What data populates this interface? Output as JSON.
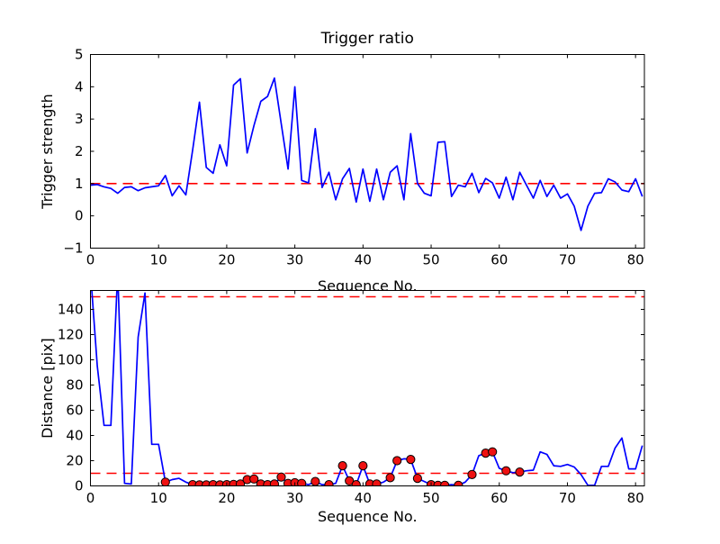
{
  "figure": {
    "title": "Trigger ratio",
    "background": "#ffffff",
    "line_color": "#0000ff",
    "threshold_color": "#ff0000",
    "marker_fill": "#ee1111",
    "marker_edge": "#000000",
    "axis_color": "#000000"
  },
  "chart_data": [
    {
      "type": "line",
      "title": "Trigger ratio",
      "xlabel": "Sequence No.",
      "ylabel": "Trigger strength",
      "xlim": [
        0,
        81.3
      ],
      "ylim": [
        -1,
        5
      ],
      "xticks": [
        0,
        10,
        20,
        30,
        40,
        50,
        60,
        70,
        80
      ],
      "yticks": [
        -1,
        0,
        1,
        2,
        3,
        4,
        5
      ],
      "grid": false,
      "legend": null,
      "threshold_lines": [
        1.0
      ],
      "x_start": 0,
      "y": [
        0.95,
        0.97,
        0.9,
        0.85,
        0.7,
        0.88,
        0.9,
        0.78,
        0.87,
        0.9,
        0.93,
        1.25,
        0.62,
        0.93,
        0.65,
        2.05,
        3.52,
        1.5,
        1.32,
        2.2,
        1.55,
        4.05,
        4.25,
        1.95,
        2.8,
        3.55,
        3.7,
        4.27,
        2.85,
        1.45,
        4.0,
        1.1,
        1.02,
        2.7,
        0.88,
        1.35,
        0.5,
        1.15,
        1.47,
        0.43,
        1.45,
        0.45,
        1.45,
        0.5,
        1.35,
        1.55,
        0.5,
        2.55,
        1.0,
        0.7,
        0.62,
        2.28,
        2.3,
        0.6,
        0.95,
        0.9,
        1.32,
        0.72,
        1.16,
        1.02,
        0.55,
        1.2,
        0.5,
        1.35,
        0.95,
        0.55,
        1.1,
        0.6,
        0.95,
        0.55,
        0.68,
        0.3,
        -0.45,
        0.3,
        0.7,
        0.72,
        1.15,
        1.05,
        0.8,
        0.75,
        1.15,
        0.6
      ]
    },
    {
      "type": "line",
      "title": "",
      "xlabel": "Sequence No.",
      "ylabel": "Distance [pix]",
      "xlim": [
        0,
        81.3
      ],
      "ylim": [
        0,
        155
      ],
      "xticks": [
        0,
        10,
        20,
        30,
        40,
        50,
        60,
        70,
        80
      ],
      "yticks": [
        0,
        20,
        40,
        60,
        80,
        100,
        120,
        140
      ],
      "grid": false,
      "legend": null,
      "threshold_lines": [
        150,
        10
      ],
      "x_start": 0,
      "y": [
        170,
        95,
        48,
        48,
        170,
        2,
        1.5,
        118,
        153,
        33,
        33,
        3,
        5,
        6,
        3,
        1,
        0.8,
        0.8,
        1,
        0.8,
        1,
        1.2,
        1.5,
        5,
        5.5,
        1.5,
        1,
        1.5,
        7,
        2,
        2.5,
        2,
        1,
        3.5,
        1,
        1,
        2,
        16,
        4,
        1,
        16,
        1.5,
        1.5,
        3,
        6.5,
        20,
        21.5,
        21,
        6,
        3.5,
        1,
        0.5,
        0.5,
        1,
        0.5,
        3,
        9,
        24,
        26,
        27,
        14,
        12,
        10.5,
        11,
        12,
        12.5,
        27,
        25,
        16,
        15.5,
        17,
        15,
        9,
        0.5,
        0.5,
        15.5,
        15.5,
        30,
        38,
        13.5,
        13.5,
        32
      ],
      "trigger_indices": [
        11,
        15,
        16,
        17,
        18,
        19,
        20,
        21,
        22,
        23,
        24,
        25,
        26,
        27,
        28,
        29,
        30,
        31,
        33,
        35,
        37,
        38,
        39,
        40,
        41,
        42,
        44,
        45,
        47,
        48,
        50,
        51,
        52,
        54,
        56,
        58,
        59,
        61,
        63
      ]
    }
  ]
}
